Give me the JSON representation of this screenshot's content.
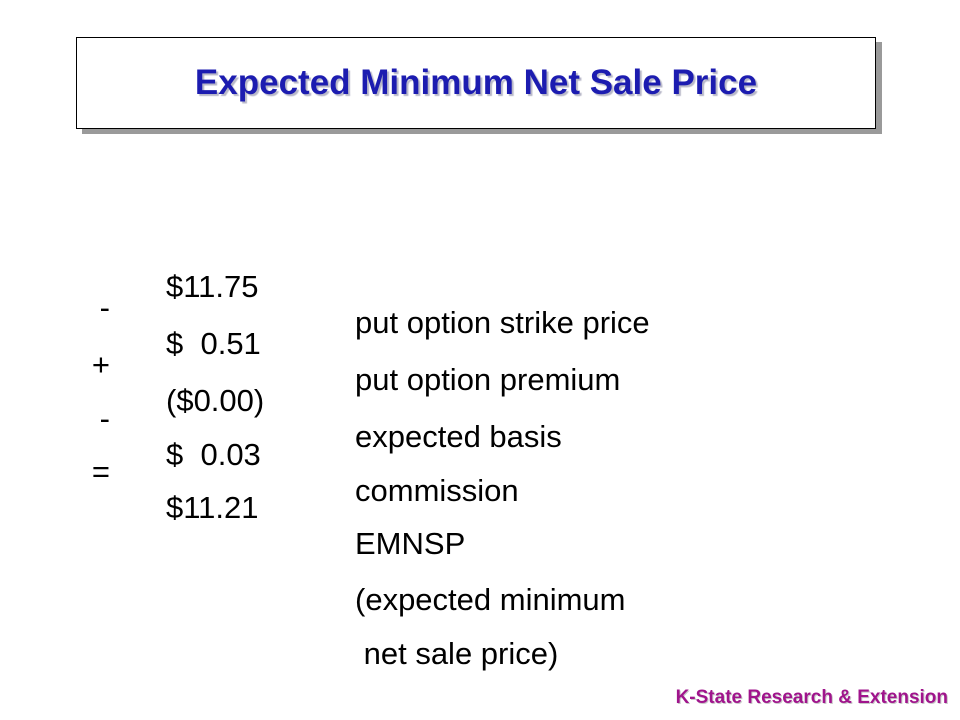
{
  "slide": {
    "title": "Expected Minimum Net Sale Price",
    "rows": [
      {
        "op": "",
        "amount": "$11.75",
        "desc": "put option strike price"
      },
      {
        "op": "-",
        "amount": "$  0.51",
        "desc": "put option premium"
      },
      {
        "op": "+",
        "amount": "($0.00)",
        "desc": "expected basis"
      },
      {
        "op": "-",
        "amount": "$  0.03",
        "desc": "commission"
      },
      {
        "op": "=",
        "amount": "$11.21",
        "desc": "EMNSP"
      },
      {
        "op": "",
        "amount": "",
        "desc": "(expected minimum"
      },
      {
        "op": "",
        "amount": "",
        "desc": " net sale price)"
      }
    ],
    "footer": "K-State Research & Extension",
    "colors": {
      "title": "#1c1cb0",
      "footer": "#a0148c",
      "text": "#000000"
    }
  }
}
